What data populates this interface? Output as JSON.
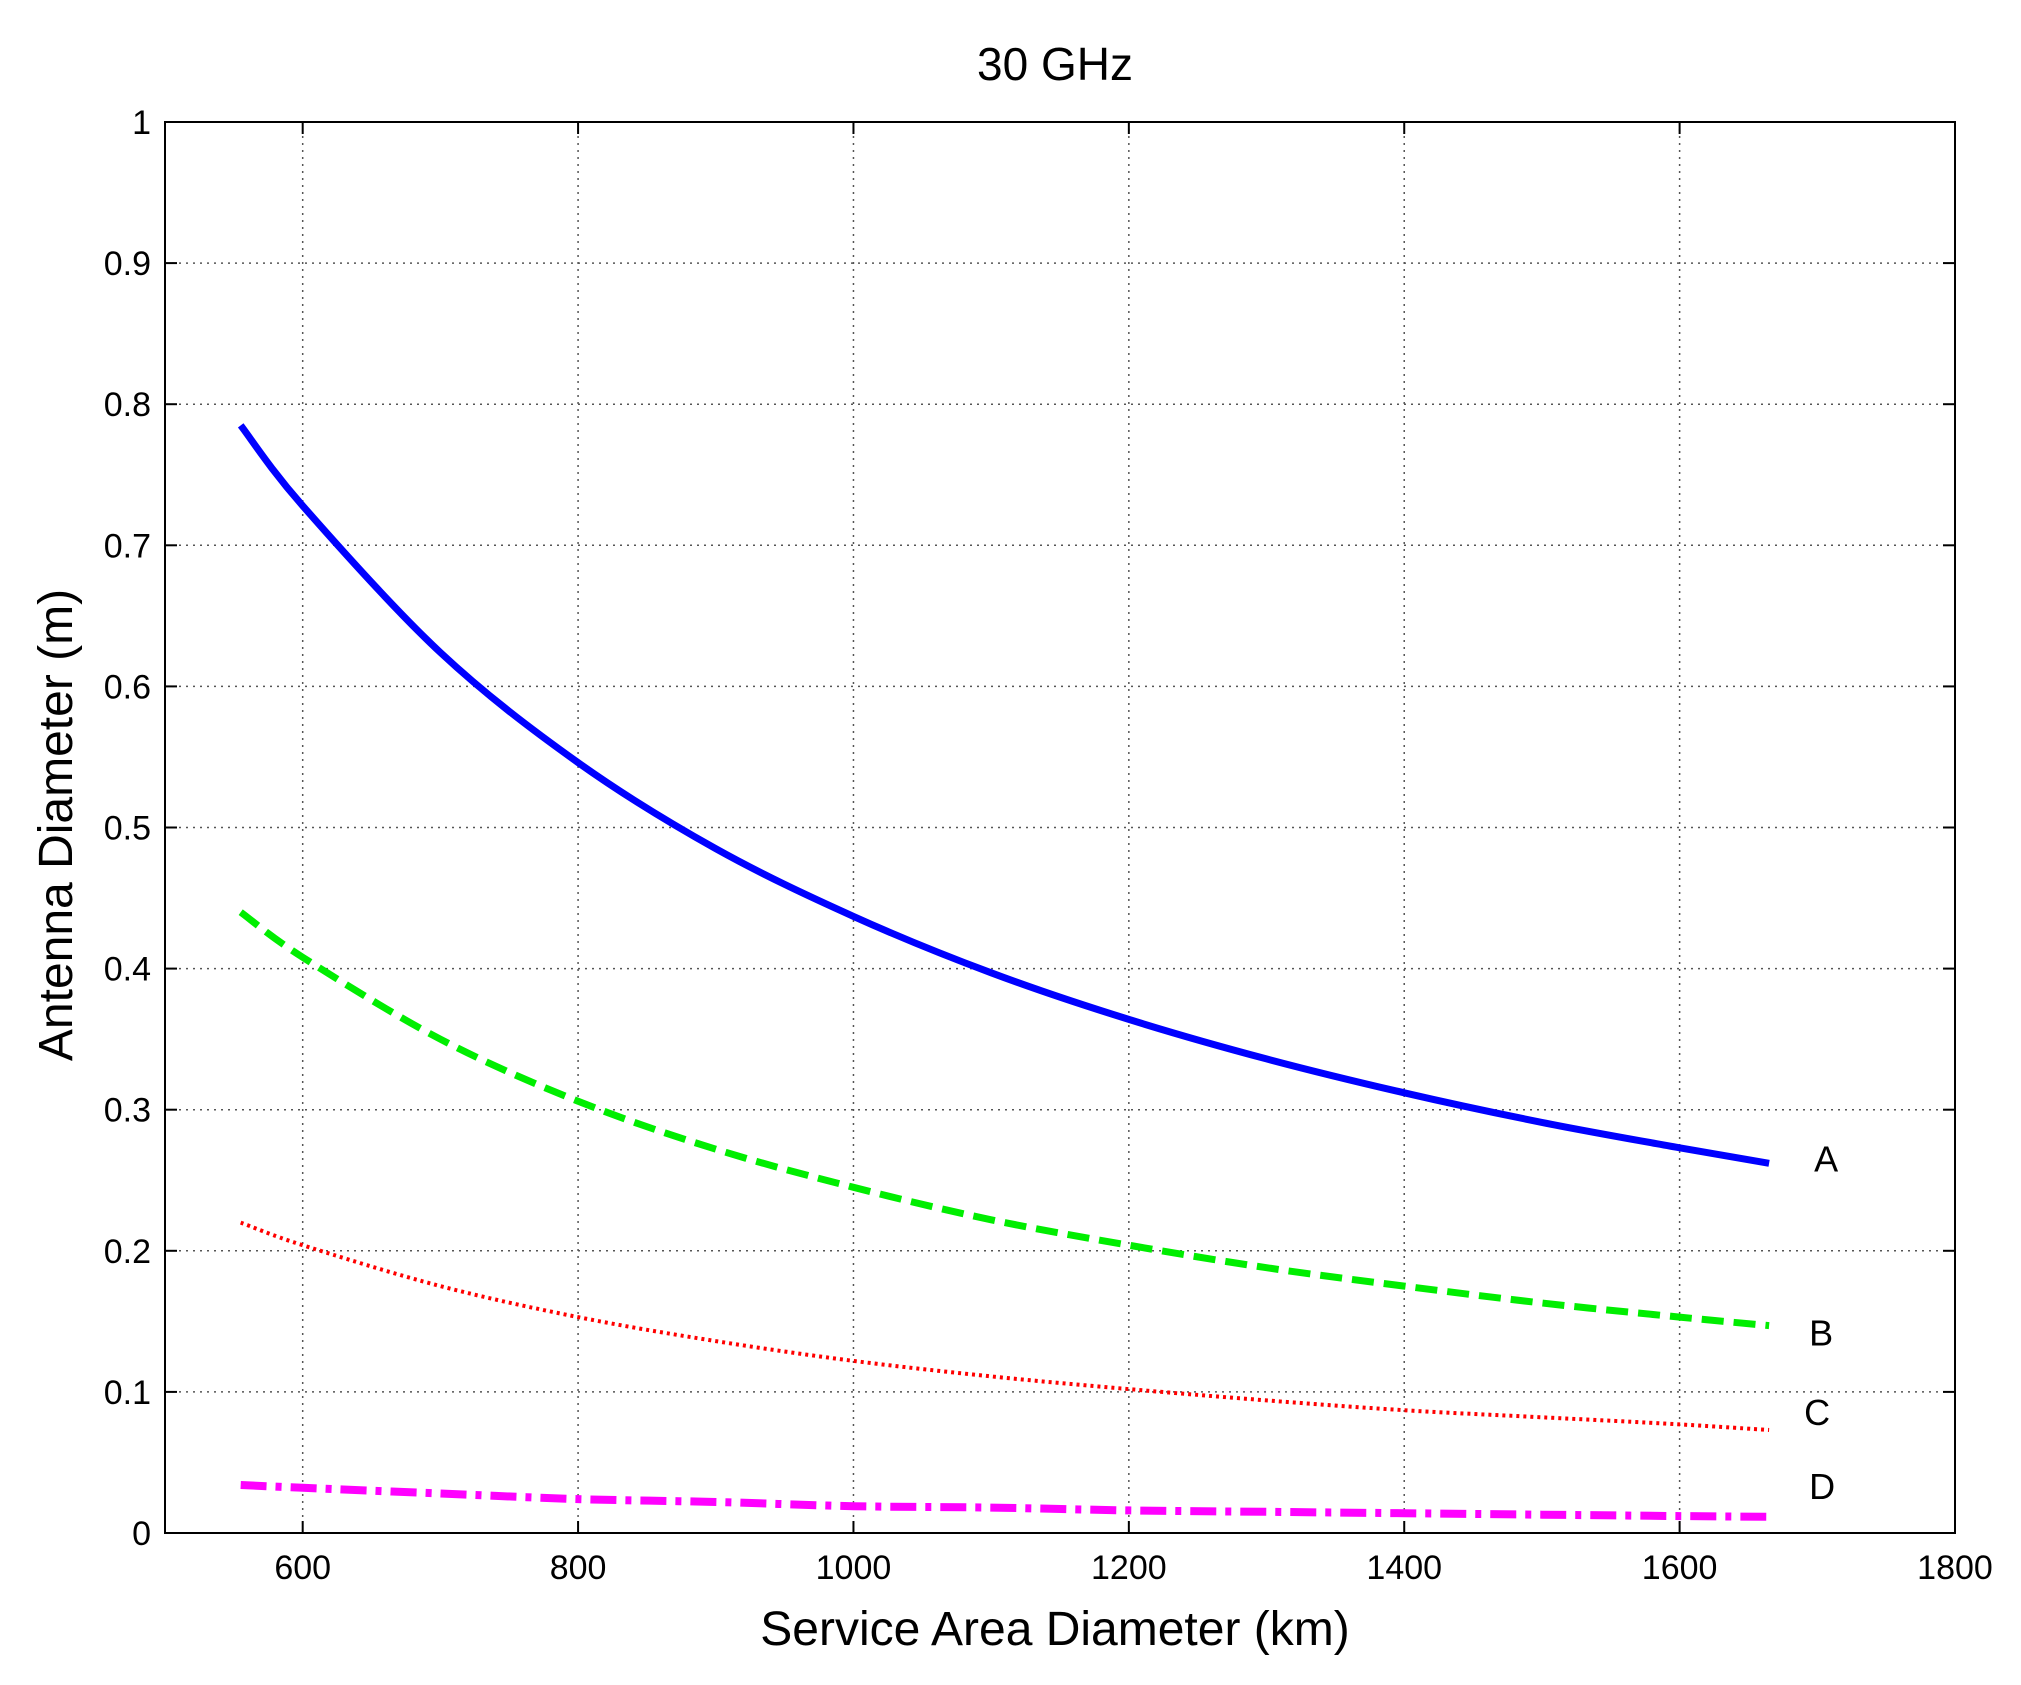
{
  "chart_data": {
    "type": "line",
    "title": "30 GHz",
    "xlabel": "Service Area Diameter (km)",
    "ylabel": "Antenna Diameter  (m)",
    "xlim": [
      500,
      1800
    ],
    "ylim": [
      0,
      1
    ],
    "xticks": [
      600,
      800,
      1000,
      1200,
      1400,
      1600,
      1800
    ],
    "yticks": [
      0,
      0.1,
      0.2,
      0.3,
      0.4,
      0.5,
      0.6,
      0.7,
      0.8,
      0.9,
      1
    ],
    "ytick_labels": [
      "0",
      "0.1",
      "0.2",
      "0.3",
      "0.4",
      "0.5",
      "0.6",
      "0.7",
      "0.8",
      "0.9",
      "1"
    ],
    "xtick_labels": [
      "600",
      "800",
      "1000",
      "1200",
      "1400",
      "1600",
      "1800"
    ],
    "grid": true,
    "x": [
      555,
      600,
      700,
      800,
      900,
      1000,
      1100,
      1200,
      1300,
      1400,
      1500,
      1600,
      1665
    ],
    "series": [
      {
        "name": "A",
        "color": "#0000ff",
        "style": "solid",
        "values": [
          0.785,
          0.728,
          0.624,
          0.546,
          0.485,
          0.437,
          0.397,
          0.364,
          0.336,
          0.312,
          0.291,
          0.273,
          0.262
        ]
      },
      {
        "name": "B",
        "color": "#00ee00",
        "style": "dashed",
        "values": [
          0.44,
          0.408,
          0.35,
          0.306,
          0.272,
          0.245,
          0.222,
          0.204,
          0.188,
          0.175,
          0.163,
          0.153,
          0.147
        ]
      },
      {
        "name": "C",
        "color": "#ff0000",
        "style": "dotted",
        "values": [
          0.22,
          0.204,
          0.175,
          0.153,
          0.136,
          0.122,
          0.111,
          0.102,
          0.094,
          0.087,
          0.082,
          0.077,
          0.073
        ]
      },
      {
        "name": "D",
        "color": "#ff00ff",
        "style": "dashdot",
        "values": [
          0.034,
          0.032,
          0.028,
          0.024,
          0.022,
          0.019,
          0.018,
          0.016,
          0.015,
          0.014,
          0.013,
          0.012,
          0.0115
        ]
      }
    ]
  }
}
